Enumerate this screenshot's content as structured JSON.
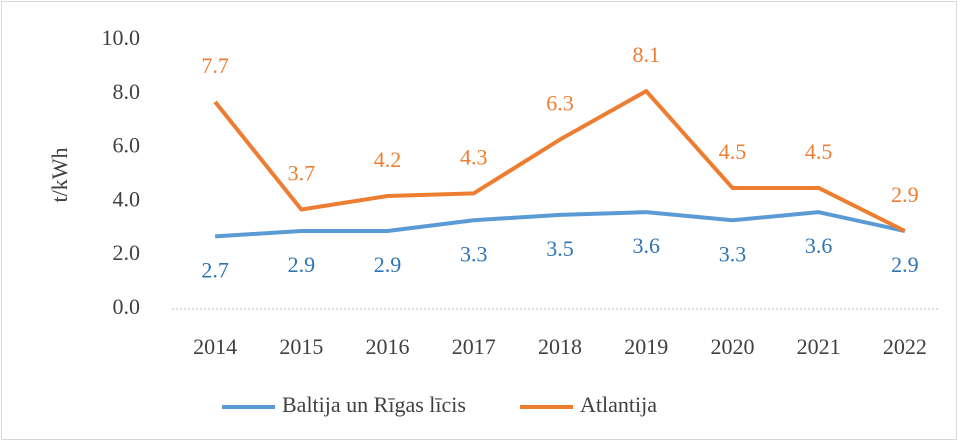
{
  "chart_data": {
    "type": "line",
    "y_label": "t/kWh",
    "categories": [
      "2014",
      "2015",
      "2016",
      "2017",
      "2018",
      "2019",
      "2020",
      "2021",
      "2022"
    ],
    "series": [
      {
        "name": "Baltija un Rīgas līcis",
        "color": "#5b9bd5",
        "label_color": "#2e75b6",
        "label_position": "below",
        "values": [
          2.7,
          2.9,
          2.9,
          3.3,
          3.5,
          3.6,
          3.3,
          3.6,
          2.9
        ]
      },
      {
        "name": "Atlantija",
        "color": "#ed7d31",
        "label_color": "#ed7d31",
        "label_position": "above",
        "values": [
          7.7,
          3.7,
          4.2,
          4.3,
          6.3,
          8.1,
          4.5,
          4.5,
          2.9
        ]
      }
    ],
    "ylim": [
      0,
      10
    ],
    "yticks": [
      {
        "value": 0,
        "label": "0.0"
      },
      {
        "value": 2,
        "label": "2.0"
      },
      {
        "value": 4,
        "label": "4.0"
      },
      {
        "value": 6,
        "label": "6.0"
      },
      {
        "value": 8,
        "label": "8.0"
      },
      {
        "value": 10,
        "label": "10.0"
      }
    ],
    "grid": false,
    "legend": "bottom"
  }
}
